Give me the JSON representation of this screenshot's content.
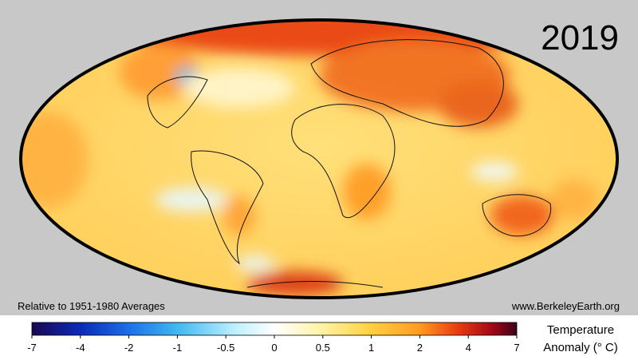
{
  "header": {
    "year": "2019"
  },
  "footer": {
    "baseline": "Relative to 1951-1980 Averages",
    "source": "www.BerkeleyEarth.org"
  },
  "colorbar": {
    "ticks": [
      -7,
      -4,
      -2,
      -1,
      -0.5,
      0,
      0.5,
      1,
      2,
      4,
      7
    ],
    "title_lines": [
      "Temperature",
      "Anomaly (° C)"
    ]
  }
}
